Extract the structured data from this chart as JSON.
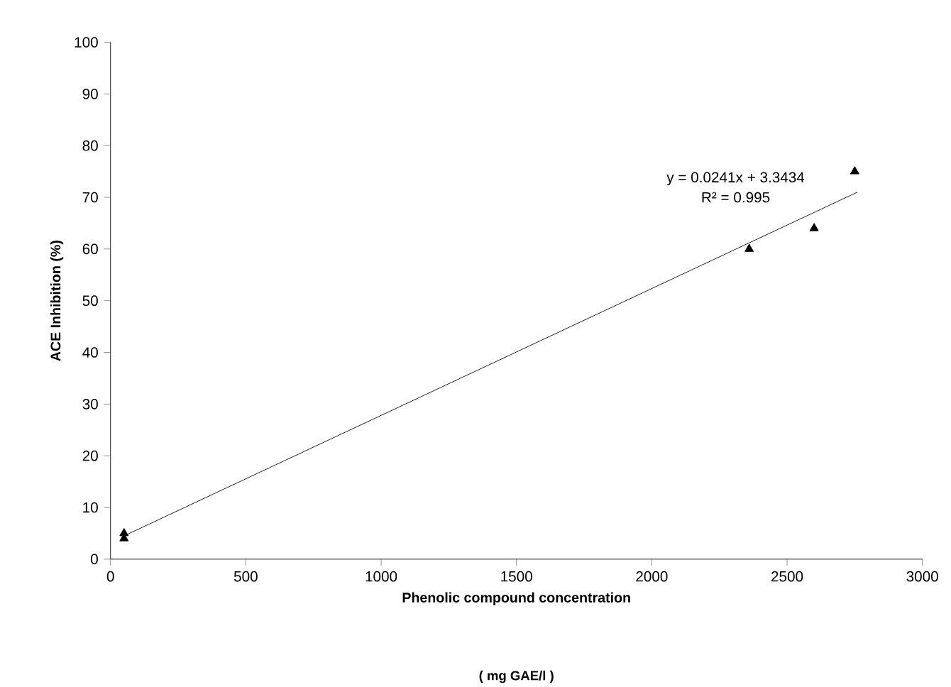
{
  "chart_data": {
    "type": "scatter",
    "xlabel": "Phenolic compound concentration",
    "ylabel": "ACE Inhibition (%)",
    "annotations": [
      "y = 0.0241x + 3.3434",
      "R² = 0.995",
      "( mg GAE/l )"
    ],
    "grid": false,
    "series": [
      {
        "color": "#000000",
        "marker": "triangle",
        "x": [
          50,
          50,
          2360,
          2600,
          2750
        ],
        "values": [
          5,
          4,
          60,
          64,
          75
        ]
      },
      {
        "type": "line",
        "color": "#000000",
        "marker": "none",
        "x": [
          50,
          2760
        ],
        "values": [
          4.5,
          71
        ]
      }
    ],
    "xlim": [
      0,
      3000
    ],
    "xticks": [
      0,
      500,
      1000,
      1500,
      2000,
      2500,
      3000
    ],
    "ylim": [
      0,
      100
    ],
    "yticks": [
      0,
      10,
      20,
      30,
      40,
      50,
      60,
      70,
      80,
      90,
      100
    ]
  }
}
